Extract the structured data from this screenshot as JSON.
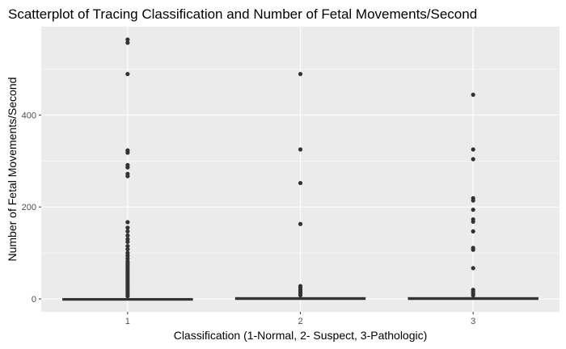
{
  "chart_data": {
    "type": "scatter",
    "title": "Scatterplot of Tracing Classification and Number of Fetal Movements/Second",
    "xlabel": "Classification (1-Normal, 2- Suspect, 3-Pathologic)",
    "ylabel": "Number of Fetal Movements/Second",
    "categories": [
      "1",
      "2",
      "3"
    ],
    "yticks": [
      0,
      200,
      400
    ],
    "ylim": [
      -28,
      592
    ],
    "grid": true,
    "background": "#ebebeb",
    "point_color": "#333333",
    "series": [
      {
        "category": "1",
        "outliers": [
          564,
          557,
          489,
          323,
          318,
          291,
          286,
          272,
          267,
          167,
          155,
          147,
          138,
          130,
          124,
          115,
          108,
          100,
          94,
          88,
          82,
          78,
          74,
          70,
          66,
          62,
          58,
          54,
          50,
          46,
          42,
          38,
          34,
          30,
          26,
          22,
          18,
          14,
          10,
          6
        ],
        "box": {
          "min": 0,
          "q1": 0,
          "median": 0,
          "q3": 0,
          "max": 0
        }
      },
      {
        "category": "2",
        "outliers": [
          489,
          325,
          252,
          163,
          28,
          24,
          20,
          16,
          12,
          8
        ],
        "box": {
          "min": 0,
          "q1": 0,
          "median": 0,
          "q3": 2,
          "max": 4
        }
      },
      {
        "category": "3",
        "outliers": [
          444,
          325,
          304,
          219,
          214,
          194,
          173,
          168,
          147,
          111,
          107,
          67,
          20,
          16,
          12,
          8
        ],
        "box": {
          "min": 0,
          "q1": 0,
          "median": 0,
          "q3": 2,
          "max": 4
        }
      }
    ]
  }
}
